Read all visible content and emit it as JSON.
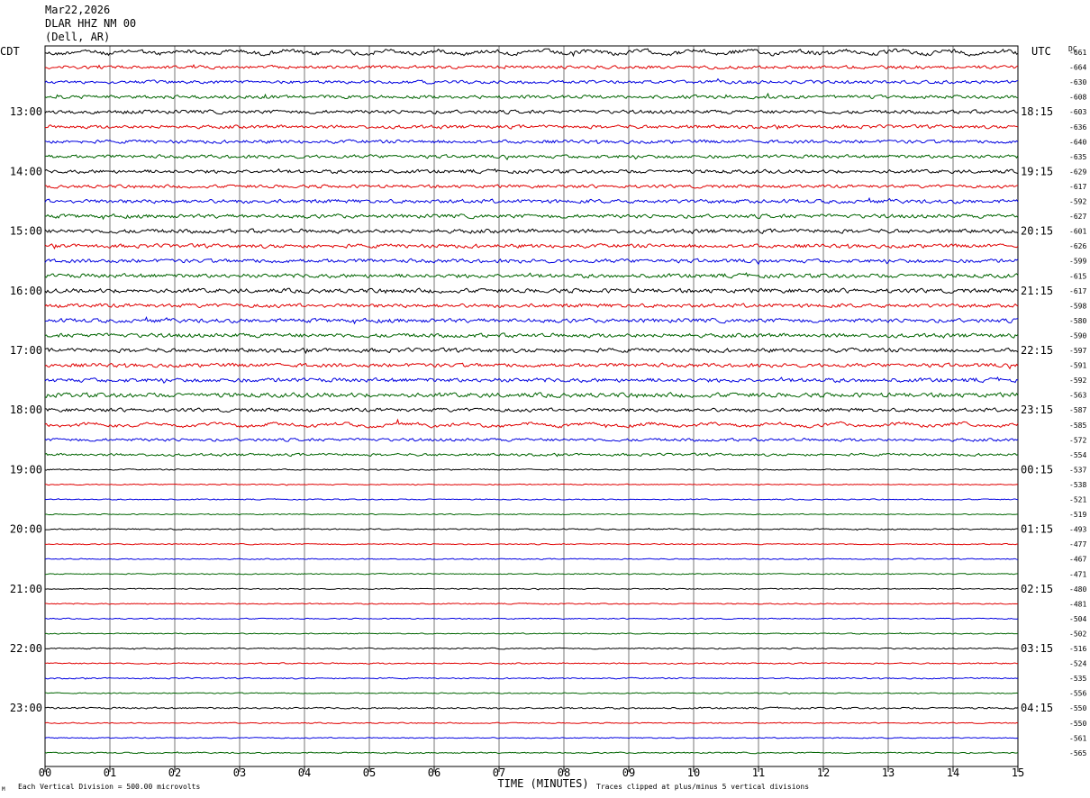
{
  "header": {
    "date": "Mar22,2026",
    "station": "DLAR HHZ NM 00",
    "location": "(Dell, AR)"
  },
  "left_tz": "CDT",
  "right_tz": "UTC",
  "dc_label": "DC",
  "footer": {
    "scale": "Each Vertical Division =  500.00 microvolts",
    "clip": "Traces clipped at plus/minus 5 vertical divisions",
    "corner_mark": "M"
  },
  "chart_data": {
    "type": "line",
    "title": "",
    "xlabel": "TIME (MINUTES)",
    "ylabel": "",
    "xlim": [
      0,
      15
    ],
    "x_ticks": [
      "00",
      "01",
      "02",
      "03",
      "04",
      "05",
      "06",
      "07",
      "08",
      "09",
      "10",
      "11",
      "12",
      "13",
      "14",
      "15"
    ],
    "grid": true,
    "trace_colors": [
      "#000000",
      "#e00000",
      "#0000e0",
      "#006400"
    ],
    "left_time_labels": [
      "13:00",
      "14:00",
      "15:00",
      "16:00",
      "17:00",
      "18:00",
      "19:00",
      "20:00",
      "21:00",
      "22:00",
      "23:00"
    ],
    "right_time_labels": [
      "18:15",
      "19:15",
      "20:15",
      "21:15",
      "22:15",
      "23:15",
      "00:15",
      "01:15",
      "02:15",
      "03:15",
      "04:15"
    ],
    "dc_offsets": [
      -661,
      -664,
      -630,
      -608,
      -603,
      -636,
      -640,
      -635,
      -629,
      -617,
      -592,
      -627,
      -601,
      -626,
      -599,
      -615,
      -617,
      -598,
      -580,
      -590,
      -597,
      -591,
      -592,
      -563,
      -587,
      -585,
      -572,
      -554,
      -537,
      -538,
      -521,
      -519,
      -493,
      -477,
      -467,
      -471,
      -480,
      -481,
      -504,
      -502,
      -516,
      -524,
      -535,
      -556,
      -550,
      -550,
      -561,
      -565
    ],
    "trace_activity": [
      1.9,
      1.5,
      1.5,
      1.6,
      1.7,
      1.6,
      1.6,
      1.6,
      1.7,
      1.5,
      1.8,
      1.8,
      1.9,
      1.8,
      1.8,
      1.9,
      2.0,
      1.8,
      1.9,
      1.9,
      1.9,
      1.8,
      1.9,
      2.1,
      1.7,
      1.5,
      1.4,
      1.2,
      0.6,
      0.5,
      0.5,
      0.5,
      0.6,
      0.5,
      0.5,
      0.5,
      0.5,
      0.5,
      0.5,
      0.5,
      0.6,
      0.6,
      0.6,
      0.5,
      0.8,
      0.5,
      0.5,
      0.6
    ]
  }
}
